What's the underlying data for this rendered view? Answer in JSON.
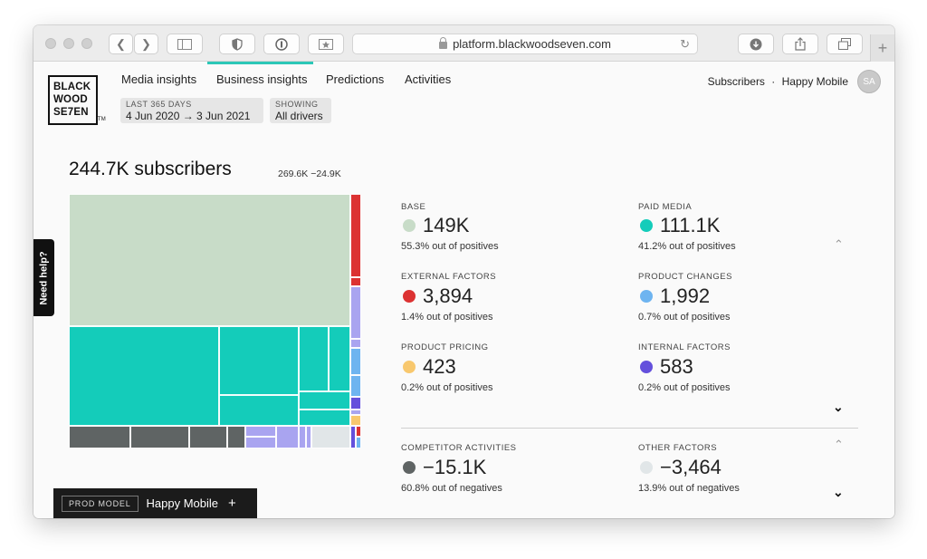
{
  "browser": {
    "url": "platform.blackwoodseven.com"
  },
  "logo": {
    "lines": [
      "BLACK",
      "WOOD",
      "SE7EN"
    ],
    "tm": "TM"
  },
  "nav": {
    "items": [
      {
        "label": "Media insights"
      },
      {
        "label": "Business insights",
        "active": true
      },
      {
        "label": "Predictions"
      },
      {
        "label": "Activities"
      }
    ]
  },
  "filters": {
    "period": {
      "caption": "LAST 365 DAYS",
      "value": "4 Jun 2020 → 3 Jun 2021"
    },
    "drivers": {
      "caption": "SHOWING",
      "value": "All drivers"
    }
  },
  "account": {
    "metric": "Subscribers",
    "separator": "·",
    "brand": "Happy Mobile",
    "initials": "SA"
  },
  "help": {
    "label": "Need help?"
  },
  "summary": {
    "headline": "244.7K subscribers",
    "range": "269.6K −24.9K"
  },
  "colors": {
    "base": "#c8dcc8",
    "paid_media": "#14ccba",
    "external": "#dc3232",
    "product_changes": "#6eb4f0",
    "product_pricing": "#f8c86e",
    "internal": "#6450dc",
    "competitor": "#5f6464",
    "other": "#e1e6e8"
  },
  "metrics": {
    "positive": [
      {
        "caption": "BASE",
        "value": "149K",
        "sub": "55.3% out of positives",
        "color": "#c8dcc8"
      },
      {
        "caption": "PAID MEDIA",
        "value": "111.1K",
        "sub": "41.2% out of positives",
        "color": "#14ccba"
      },
      {
        "caption": "EXTERNAL FACTORS",
        "value": "3,894",
        "sub": "1.4% out of positives",
        "color": "#dc3232"
      },
      {
        "caption": "PRODUCT CHANGES",
        "value": "1,992",
        "sub": "0.7% out of positives",
        "color": "#6eb4f0"
      },
      {
        "caption": "PRODUCT PRICING",
        "value": "423",
        "sub": "0.2% out of positives",
        "color": "#f8c86e"
      },
      {
        "caption": "INTERNAL FACTORS",
        "value": "583",
        "sub": "0.2% out of positives",
        "color": "#6450dc"
      }
    ],
    "negative": [
      {
        "caption": "COMPETITOR ACTIVITIES",
        "value": "−15.1K",
        "sub": "60.8% out of negatives",
        "color": "#5f6464"
      },
      {
        "caption": "OTHER FACTORS",
        "value": "−3,464",
        "sub": "13.9% out of negatives",
        "color": "#e1e6e8"
      }
    ]
  },
  "prod_bar": {
    "badge": "PROD MODEL",
    "name": "Happy Mobile",
    "plus": "+"
  },
  "icons": {
    "back": "chevron-left-icon",
    "forward": "chevron-right-icon",
    "sidebar": "sidebar-icon",
    "shield": "shield-icon",
    "password": "password-icon",
    "bookmark": "bookmark-icon",
    "download": "download-icon",
    "share": "share-icon",
    "tabs": "tabs-icon",
    "reload": "reload-icon",
    "new_tab": "plus-icon"
  }
}
